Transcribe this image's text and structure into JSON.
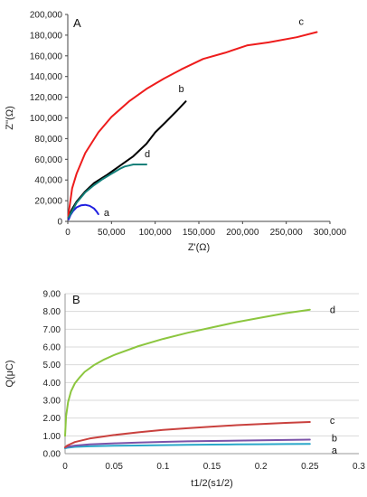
{
  "chart_data": [
    {
      "panel": "A",
      "type": "line",
      "xlabel": "Z'(Ω)",
      "ylabel": "Z''(Ω)",
      "xlim": [
        0,
        300000
      ],
      "ylim": [
        0,
        200000
      ],
      "x_ticks": [
        "0",
        "50,000",
        "100,000",
        "150,000",
        "200,000",
        "250,000",
        "300,000"
      ],
      "y_ticks": [
        "0",
        "20,000",
        "40,000",
        "60,000",
        "80,000",
        "100,000",
        "120,000",
        "140,000",
        "160,000",
        "180,000",
        "200,000"
      ],
      "grid": false,
      "series": [
        {
          "name": "a",
          "color": "#1f1fe0",
          "x": [
            1000,
            3000,
            6000,
            10000,
            15000,
            20000,
            25000,
            30000,
            33000,
            35000
          ],
          "y": [
            2000,
            6000,
            10000,
            13500,
            15500,
            16000,
            15000,
            12500,
            9500,
            7000
          ]
        },
        {
          "name": "b",
          "color": "#000000",
          "x": [
            1000,
            5000,
            10000,
            20000,
            30000,
            45000,
            60000,
            75000,
            90000,
            100000,
            112000,
            125000,
            135000
          ],
          "y": [
            5000,
            12000,
            19000,
            29000,
            37000,
            45000,
            54000,
            63000,
            75000,
            86000,
            96000,
            107000,
            116000
          ]
        },
        {
          "name": "c",
          "color": "#ee1c1c",
          "x": [
            500,
            5000,
            10000,
            20000,
            35000,
            50000,
            70000,
            90000,
            110000,
            130000,
            155000,
            180000,
            205000,
            230000,
            262000,
            285000
          ],
          "y": [
            5000,
            32000,
            46000,
            66000,
            86000,
            101000,
            116000,
            128000,
            138000,
            147000,
            157000,
            163000,
            170000,
            173000,
            178000,
            183000
          ]
        },
        {
          "name": "d",
          "color": "#12807a",
          "x": [
            1000,
            5000,
            10000,
            20000,
            30000,
            40000,
            50000,
            60000,
            65000,
            70000,
            75000,
            82000,
            90000
          ],
          "y": [
            4000,
            10000,
            18000,
            28000,
            35000,
            41000,
            46000,
            51000,
            53000,
            54000,
            55000,
            55000,
            55000
          ]
        }
      ]
    },
    {
      "panel": "B",
      "type": "line",
      "xlabel": "t1/2(s1/2)",
      "ylabel": "Q(μC)",
      "xlim": [
        0,
        0.3
      ],
      "ylim": [
        0,
        9
      ],
      "x_ticks": [
        "0",
        "0.05",
        "0.1",
        "0.15",
        "0.2",
        "0.25",
        "0.3"
      ],
      "y_ticks": [
        "0.00",
        "1.00",
        "2.00",
        "3.00",
        "4.00",
        "5.00",
        "6.00",
        "7.00",
        "8.00",
        "9.00"
      ],
      "grid": true,
      "series": [
        {
          "name": "a",
          "color": "#2aa7c9",
          "x": [
            0,
            0.002,
            0.01,
            0.025,
            0.05,
            0.075,
            0.1,
            0.125,
            0.15,
            0.175,
            0.2,
            0.225,
            0.25
          ],
          "y": [
            0.3,
            0.33,
            0.38,
            0.41,
            0.44,
            0.46,
            0.48,
            0.5,
            0.51,
            0.52,
            0.53,
            0.54,
            0.55
          ]
        },
        {
          "name": "b",
          "color": "#7b52a8",
          "x": [
            0,
            0.002,
            0.01,
            0.025,
            0.05,
            0.075,
            0.1,
            0.125,
            0.15,
            0.175,
            0.2,
            0.225,
            0.25
          ],
          "y": [
            0.35,
            0.38,
            0.45,
            0.52,
            0.58,
            0.62,
            0.66,
            0.69,
            0.71,
            0.73,
            0.75,
            0.77,
            0.79
          ]
        },
        {
          "name": "c",
          "color": "#c9413e",
          "x": [
            0,
            0.002,
            0.01,
            0.025,
            0.05,
            0.075,
            0.1,
            0.125,
            0.15,
            0.175,
            0.2,
            0.225,
            0.25
          ],
          "y": [
            0.35,
            0.45,
            0.65,
            0.85,
            1.05,
            1.2,
            1.33,
            1.43,
            1.52,
            1.6,
            1.67,
            1.73,
            1.78
          ]
        },
        {
          "name": "d",
          "color": "#8cc63f",
          "x": [
            0,
            0.001,
            0.003,
            0.006,
            0.01,
            0.015,
            0.02,
            0.03,
            0.04,
            0.05,
            0.075,
            0.1,
            0.125,
            0.15,
            0.175,
            0.2,
            0.225,
            0.25
          ],
          "y": [
            1.0,
            2.1,
            2.9,
            3.5,
            3.95,
            4.3,
            4.6,
            5.0,
            5.3,
            5.55,
            6.05,
            6.45,
            6.8,
            7.1,
            7.4,
            7.65,
            7.9,
            8.1
          ]
        }
      ]
    }
  ]
}
